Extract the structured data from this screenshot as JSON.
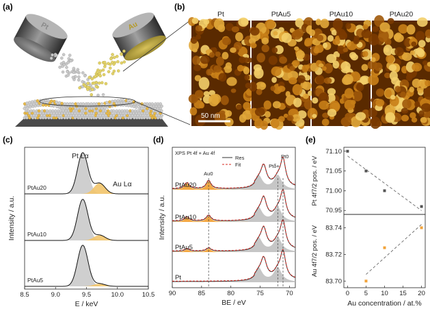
{
  "panels": {
    "a": "(a)",
    "b": "(b)",
    "c": "(c)",
    "d": "(d)",
    "e": "(e)"
  },
  "panel_a": {
    "target_left": "Pt",
    "target_right": "Au"
  },
  "panel_b": {
    "labels": [
      "Pt",
      "PtAu5",
      "PtAu10",
      "PtAu20"
    ],
    "scalebar": "50 nm"
  },
  "chart_data": [
    {
      "type": "area",
      "panel": "c",
      "xlabel": "E / keV",
      "ylabel": "Intensity / a.u.",
      "xlim": [
        8.5,
        10.5
      ],
      "xticks": [
        "8.5",
        "9.0",
        "9.5",
        "10.0",
        "10.5"
      ],
      "annotations": [
        "Pt Lα",
        "Au Lα"
      ],
      "series": [
        {
          "name": "PtAu20",
          "pt_peak": 9.44,
          "au_peak": 9.71,
          "au_rel": 0.2
        },
        {
          "name": "PtAu10",
          "pt_peak": 9.44,
          "au_peak": 9.71,
          "au_rel": 0.1
        },
        {
          "name": "PtAu5",
          "pt_peak": 9.44,
          "au_peak": 9.71,
          "au_rel": 0.05
        }
      ],
      "colors": {
        "pt_fill": "#cfcfcf",
        "au_fill": "#f2c46a"
      }
    },
    {
      "type": "line",
      "panel": "d",
      "title": "XPS Pt 4f + Au 4f",
      "xlabel": "BE / eV",
      "ylabel": "Intensity / a.u.",
      "xlim": [
        90,
        69
      ],
      "xticks": [
        "90",
        "85",
        "80",
        "75",
        "70"
      ],
      "legend": [
        "Res",
        "Fit"
      ],
      "peak_labels": [
        "Au0",
        "Pt0",
        "Ptδ+"
      ],
      "series": [
        "PtAu20",
        "PtAu10",
        "PtAu5",
        "Pt"
      ],
      "peaks": {
        "pt0": [
          71.1,
          74.4
        ],
        "ptd": [
          72.0,
          75.3
        ],
        "au0": [
          83.8,
          87.5
        ]
      },
      "dashed_lines": [
        83.8,
        72.0,
        71.1
      ],
      "colors": {
        "fit": "#d7261e",
        "res": "#333333",
        "au_fill": "#f2a33a",
        "pt_fill": "#b8b8b8"
      }
    },
    {
      "type": "scatter",
      "panel": "e-top",
      "ylabel": "Pt 4f7/2 pos. / eV",
      "x": [
        0,
        5,
        10,
        20
      ],
      "y": [
        71.1,
        71.05,
        71.0,
        70.96
      ],
      "ylim": [
        70.94,
        71.11
      ],
      "yticks": [
        "71.10",
        "71.05",
        "71.00",
        "70.95"
      ],
      "color": "#555555"
    },
    {
      "type": "scatter",
      "panel": "e-bottom",
      "xlabel": "Au concentration / at.%",
      "ylabel": "Au 4f7/2 pos. / eV",
      "x": [
        5,
        10,
        20
      ],
      "y": [
        83.7,
        83.725,
        83.74
      ],
      "ylim": [
        83.695,
        83.75
      ],
      "yticks": [
        "83.74",
        "83.72",
        "83.70"
      ],
      "xticks": [
        "0",
        "5",
        "10",
        "15",
        "20"
      ],
      "xlim": [
        -1,
        21
      ],
      "color": "#f2a33a"
    }
  ]
}
